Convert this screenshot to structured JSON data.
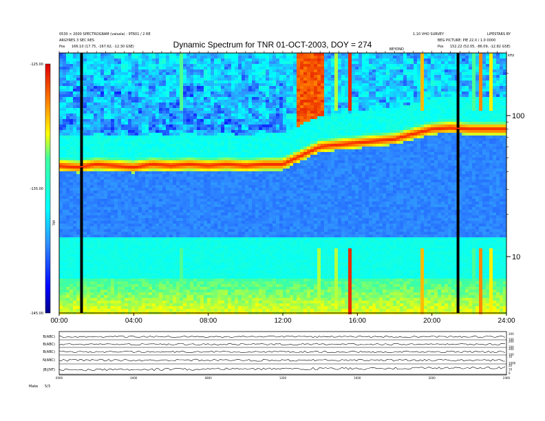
{
  "header": {
    "left_line1": "0530 > 2000 SPECTROGRAM (vaisala) - 9T601 / 2 RE",
    "left_line2": "ARGYRES 3 SEC RES",
    "left_line3_label": "Pos",
    "left_line3_value": "166.10 (17.75, -167.62, -12.30 GSE)",
    "right_line1": "1.10 VHO SURVEY",
    "right_line2": "LIFESTARS BY",
    "right_line3": "BEG PICTURE: PIE 22.0 / 1.0 0000",
    "right_line3_label": "Pos",
    "right_line3_value": "152.22 (52.05, -86.09, -12.82 GSE)",
    "top_mid_label": "BEYOND"
  },
  "chart_data": {
    "type": "heatmap",
    "title": "Dynamic Spectrum for TNR 01-OCT-2003, DOY = 274",
    "x_ticks": [
      "00:00",
      "04:00",
      "08:00",
      "12:00",
      "16:00",
      "20:00",
      "24:00"
    ],
    "x_range_hours": [
      0,
      24
    ],
    "y_axis_scale": "log",
    "y_unit_label": "kHz",
    "y_ticks": [
      "100",
      "10"
    ],
    "colorbar_ticks": [
      "-125.00",
      "-135.00",
      "-145.00"
    ],
    "colorbar_label": "TNR",
    "colorbar_range": [
      -145,
      -125
    ],
    "data_gaps_hours": [
      1.2,
      21.4
    ],
    "plasma_line_khz": [
      [
        0,
        44
      ],
      [
        1,
        43
      ],
      [
        2,
        45
      ],
      [
        3,
        44
      ],
      [
        4,
        43
      ],
      [
        5,
        45
      ],
      [
        6,
        44
      ],
      [
        7,
        45
      ],
      [
        8,
        44
      ],
      [
        9,
        45
      ],
      [
        10,
        44
      ],
      [
        11,
        45
      ],
      [
        12,
        45
      ],
      [
        13,
        52
      ],
      [
        14,
        60
      ],
      [
        16,
        64
      ],
      [
        18,
        68
      ],
      [
        19,
        74
      ],
      [
        20,
        80
      ],
      [
        21,
        82
      ],
      [
        22,
        80
      ]
    ]
  },
  "panels": {
    "rows": [
      {
        "label": "B(ABC)",
        "right_ticks": [
          "200",
          "100"
        ]
      },
      {
        "label": "B(ABC)",
        "right_ticks": [
          "200",
          "100"
        ]
      },
      {
        "label": "B(ABC)",
        "right_ticks": [
          "200",
          "100"
        ]
      },
      {
        "label": "N(ABC)",
        "right_ticks": [
          "10",
          "1000"
        ]
      },
      {
        "label": "|B|(NT)",
        "right_ticks": [
          "20",
          "10",
          "0"
        ]
      }
    ],
    "x_ticks": [
      "0000",
      "0400",
      "0800",
      "1200",
      "1600",
      "2000",
      "2400"
    ],
    "footer_left": "Make",
    "footer_value": "5/3"
  }
}
